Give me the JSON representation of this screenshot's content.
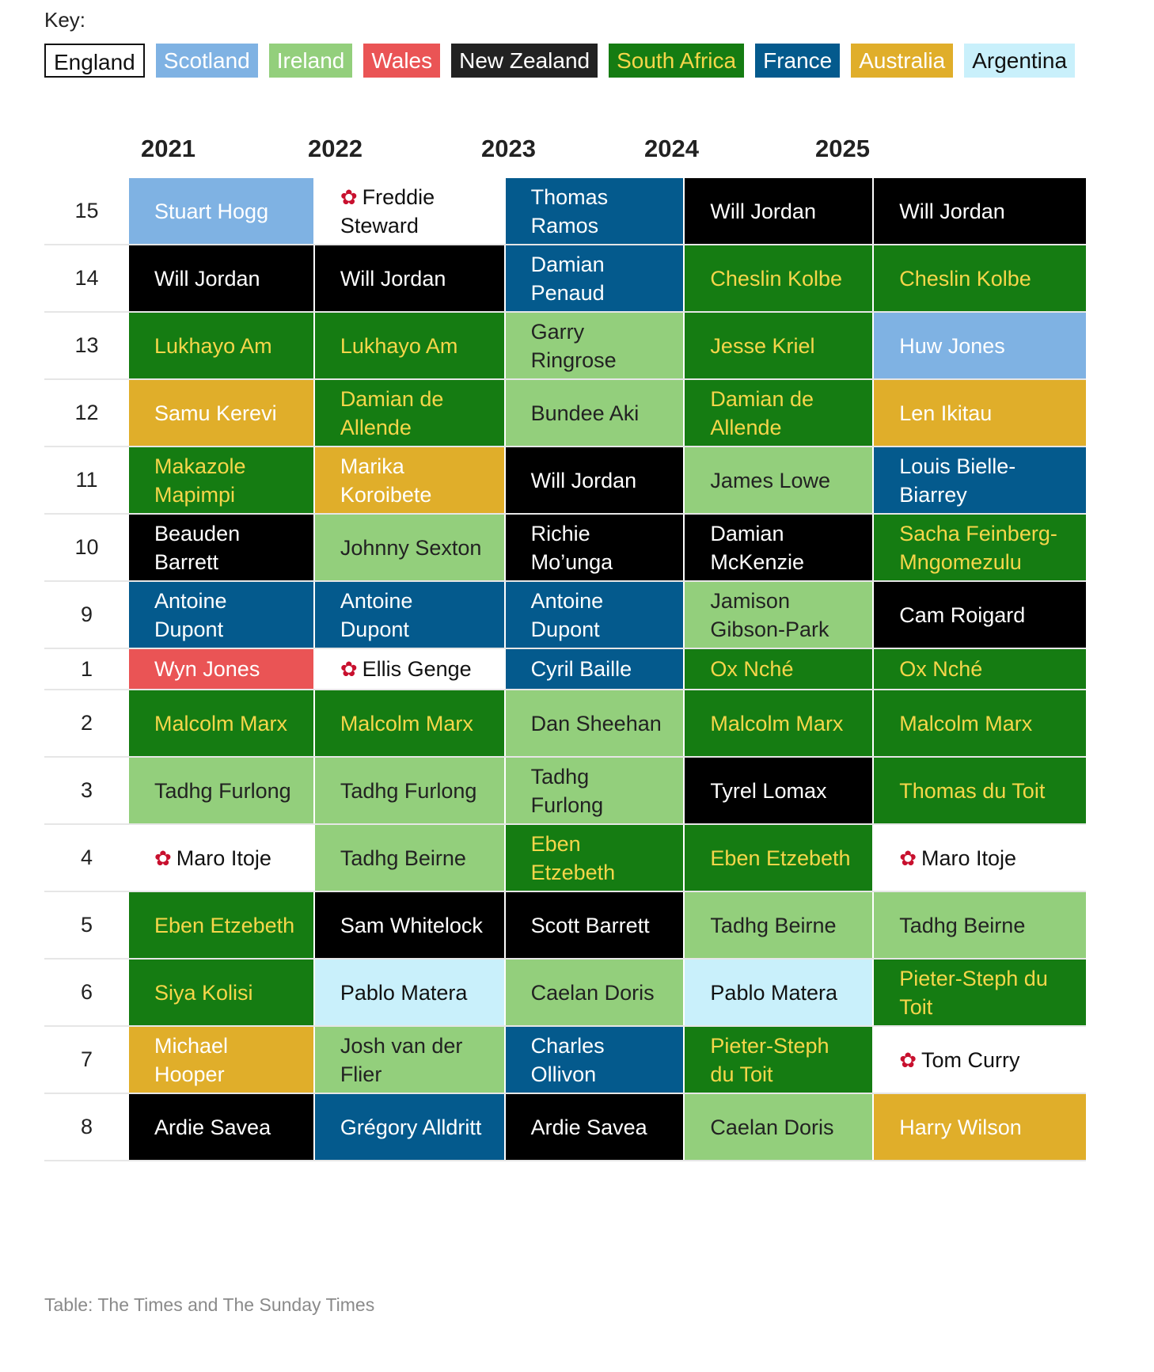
{
  "key_label": "Key:",
  "legend": [
    {
      "name": "England",
      "bg": "#ffffff",
      "fg": "#111111",
      "border": "#111111"
    },
    {
      "name": "Scotland",
      "bg": "#7fb2e3",
      "fg": "#ffffff"
    },
    {
      "name": "Ireland",
      "bg": "#93cf7c",
      "fg": "#ffffff"
    },
    {
      "name": "Wales",
      "bg": "#ea5455",
      "fg": "#ffffff"
    },
    {
      "name": "New Zealand",
      "bg": "#222222",
      "fg": "#ffffff"
    },
    {
      "name": "South Africa",
      "bg": "#157c12",
      "fg": "#f6d64a"
    },
    {
      "name": "France",
      "bg": "#045a8d",
      "fg": "#ffffff"
    },
    {
      "name": "Australia",
      "bg": "#e0ae2a",
      "fg": "#ffffff"
    },
    {
      "name": "Argentina",
      "bg": "#c9f0fb",
      "fg": "#111111"
    }
  ],
  "team_styles": {
    "England": {
      "bg": "#ffffff",
      "fg": "#111111"
    },
    "Scotland": {
      "bg": "#7fb2e3",
      "fg": "#ffffff"
    },
    "Ireland": {
      "bg": "#93cf7c",
      "fg": "#222222"
    },
    "Wales": {
      "bg": "#ea5455",
      "fg": "#ffffff"
    },
    "New Zealand": {
      "bg": "#000000",
      "fg": "#ffffff"
    },
    "South Africa": {
      "bg": "#157c12",
      "fg": "#f6d64a"
    },
    "France": {
      "bg": "#045a8d",
      "fg": "#ffffff"
    },
    "Australia": {
      "bg": "#e0ae2a",
      "fg": "#ffffff"
    },
    "Argentina": {
      "bg": "#c9f0fb",
      "fg": "#111111"
    }
  },
  "icons": {
    "england_marker": "rose-icon"
  },
  "source": "Table: The Times and The Sunday Times",
  "chart_data": {
    "type": "table",
    "columns": [
      "2021",
      "2022",
      "2023",
      "2024",
      "2025"
    ],
    "rows": [
      {
        "position": "15",
        "cells": [
          {
            "name": "Stuart Hogg",
            "team": "Scotland"
          },
          {
            "name": "Freddie Steward",
            "team": "England"
          },
          {
            "name": "Thomas Ramos",
            "team": "France"
          },
          {
            "name": "Will Jordan",
            "team": "New Zealand"
          },
          {
            "name": "Will Jordan",
            "team": "New Zealand"
          }
        ]
      },
      {
        "position": "14",
        "cells": [
          {
            "name": "Will Jordan",
            "team": "New Zealand"
          },
          {
            "name": "Will Jordan",
            "team": "New Zealand"
          },
          {
            "name": "Damian Penaud",
            "team": "France"
          },
          {
            "name": "Cheslin Kolbe",
            "team": "South Africa"
          },
          {
            "name": "Cheslin Kolbe",
            "team": "South Africa"
          }
        ]
      },
      {
        "position": "13",
        "cells": [
          {
            "name": "Lukhayo Am",
            "team": "South Africa"
          },
          {
            "name": "Lukhayo Am",
            "team": "South Africa"
          },
          {
            "name": "Garry Ringrose",
            "team": "Ireland"
          },
          {
            "name": "Jesse Kriel",
            "team": "South Africa"
          },
          {
            "name": "Huw Jones",
            "team": "Scotland"
          }
        ]
      },
      {
        "position": "12",
        "cells": [
          {
            "name": "Samu Kerevi",
            "team": "Australia"
          },
          {
            "name": "Damian de Allende",
            "team": "South Africa"
          },
          {
            "name": "Bundee Aki",
            "team": "Ireland"
          },
          {
            "name": "Damian de Allende",
            "team": "South Africa"
          },
          {
            "name": "Len Ikitau",
            "team": "Australia"
          }
        ]
      },
      {
        "position": "11",
        "cells": [
          {
            "name": "Makazole Mapimpi",
            "team": "South Africa"
          },
          {
            "name": "Marika Koroibete",
            "team": "Australia"
          },
          {
            "name": "Will Jordan",
            "team": "New Zealand"
          },
          {
            "name": "James Lowe",
            "team": "Ireland"
          },
          {
            "name": "Louis Bielle-Biarrey",
            "team": "France"
          }
        ]
      },
      {
        "position": "10",
        "cells": [
          {
            "name": "Beauden Barrett",
            "team": "New Zealand"
          },
          {
            "name": "Johnny Sexton",
            "team": "Ireland"
          },
          {
            "name": "Richie Mo’unga",
            "team": "New Zealand"
          },
          {
            "name": "Damian McKenzie",
            "team": "New Zealand"
          },
          {
            "name": "Sacha Feinberg-Mngomezulu",
            "team": "South Africa"
          }
        ]
      },
      {
        "position": "9",
        "cells": [
          {
            "name": "Antoine Dupont",
            "team": "France"
          },
          {
            "name": "Antoine Dupont",
            "team": "France"
          },
          {
            "name": "Antoine Dupont",
            "team": "France"
          },
          {
            "name": "Jamison Gibson-Park",
            "team": "Ireland"
          },
          {
            "name": "Cam Roigard",
            "team": "New Zealand"
          }
        ]
      },
      {
        "position": "1",
        "cells": [
          {
            "name": "Wyn Jones",
            "team": "Wales"
          },
          {
            "name": "Ellis Genge",
            "team": "England"
          },
          {
            "name": "Cyril Baille",
            "team": "France"
          },
          {
            "name": "Ox Nché",
            "team": "South Africa"
          },
          {
            "name": "Ox Nché",
            "team": "South Africa"
          }
        ]
      },
      {
        "position": "2",
        "cells": [
          {
            "name": "Malcolm Marx",
            "team": "South Africa"
          },
          {
            "name": "Malcolm Marx",
            "team": "South Africa"
          },
          {
            "name": "Dan Sheehan",
            "team": "Ireland"
          },
          {
            "name": "Malcolm Marx",
            "team": "South Africa"
          },
          {
            "name": "Malcolm Marx",
            "team": "South Africa"
          }
        ]
      },
      {
        "position": "3",
        "cells": [
          {
            "name": "Tadhg Furlong",
            "team": "Ireland"
          },
          {
            "name": "Tadhg Furlong",
            "team": "Ireland"
          },
          {
            "name": "Tadhg Furlong",
            "team": "Ireland"
          },
          {
            "name": "Tyrel Lomax",
            "team": "New Zealand"
          },
          {
            "name": "Thomas du Toit",
            "team": "South Africa"
          }
        ]
      },
      {
        "position": "4",
        "cells": [
          {
            "name": "Maro Itoje",
            "team": "England"
          },
          {
            "name": "Tadhg Beirne",
            "team": "Ireland"
          },
          {
            "name": "Eben Etzebeth",
            "team": "South Africa"
          },
          {
            "name": "Eben Etzebeth",
            "team": "South Africa"
          },
          {
            "name": "Maro Itoje",
            "team": "England"
          }
        ]
      },
      {
        "position": "5",
        "cells": [
          {
            "name": "Eben Etzebeth",
            "team": "South Africa"
          },
          {
            "name": "Sam Whitelock",
            "team": "New Zealand"
          },
          {
            "name": "Scott Barrett",
            "team": "New Zealand"
          },
          {
            "name": "Tadhg Beirne",
            "team": "Ireland"
          },
          {
            "name": "Tadhg Beirne",
            "team": "Ireland"
          }
        ]
      },
      {
        "position": "6",
        "cells": [
          {
            "name": "Siya Kolisi",
            "team": "South Africa"
          },
          {
            "name": "Pablo Matera",
            "team": "Argentina"
          },
          {
            "name": "Caelan Doris",
            "team": "Ireland"
          },
          {
            "name": "Pablo Matera",
            "team": "Argentina"
          },
          {
            "name": "Pieter-Steph du Toit",
            "team": "South Africa"
          }
        ]
      },
      {
        "position": "7",
        "cells": [
          {
            "name": "Michael Hooper",
            "team": "Australia"
          },
          {
            "name": "Josh van der Flier",
            "team": "Ireland"
          },
          {
            "name": "Charles Ollivon",
            "team": "France"
          },
          {
            "name": "Pieter-Steph du Toit",
            "team": "South Africa"
          },
          {
            "name": "Tom Curry",
            "team": "England"
          }
        ]
      },
      {
        "position": "8",
        "cells": [
          {
            "name": "Ardie Savea",
            "team": "New Zealand"
          },
          {
            "name": "Grégory Alldritt",
            "team": "France"
          },
          {
            "name": "Ardie Savea",
            "team": "New Zealand"
          },
          {
            "name": "Caelan Doris",
            "team": "Ireland"
          },
          {
            "name": "Harry Wilson",
            "team": "Australia"
          }
        ]
      }
    ]
  }
}
